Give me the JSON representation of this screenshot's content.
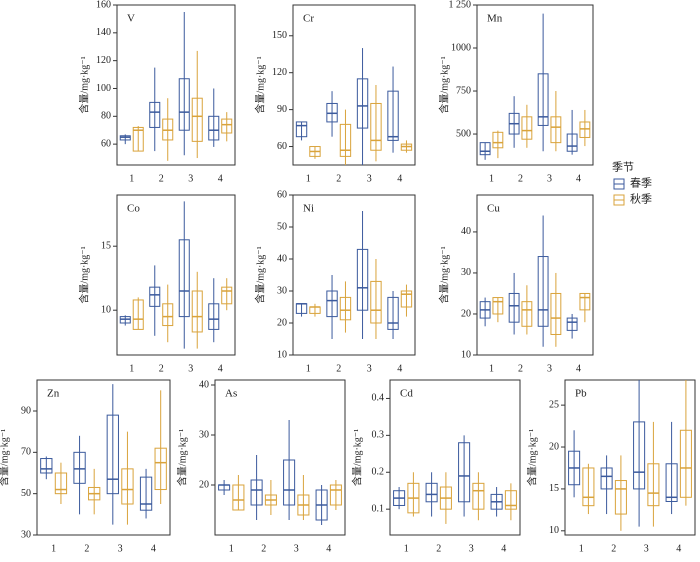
{
  "legend_title": "季节",
  "chart_data": [
    {
      "type": "box",
      "label": "V",
      "ylabel": "含量/mg·kg⁻¹",
      "categories": [
        "1",
        "2",
        "3",
        "4"
      ],
      "ylim": [
        45,
        160
      ],
      "yticks": [
        60,
        80,
        100,
        120,
        140,
        160
      ],
      "series": [
        {
          "name": "春季",
          "color": "#3b5a9d",
          "boxes": [
            [
              60,
              63,
              65,
              66,
              67
            ],
            [
              55,
              72,
              83,
              90,
              115
            ],
            [
              52,
              70,
              83,
              107,
              155
            ],
            [
              58,
              63,
              70,
              80,
              100
            ]
          ]
        },
        {
          "name": "秋季",
          "color": "#d9a33b",
          "boxes": [
            [
              55,
              55,
              70,
              72,
              73
            ],
            [
              48,
              63,
              70,
              78,
              93
            ],
            [
              50,
              62,
              80,
              93,
              127
            ],
            [
              62,
              68,
              74,
              78,
              83
            ]
          ]
        }
      ]
    },
    {
      "type": "box",
      "label": "Cr",
      "ylabel": "含量/mg·kg⁻¹",
      "categories": [
        "1",
        "2",
        "3",
        "4"
      ],
      "ylim": [
        45,
        175
      ],
      "yticks": [
        60,
        90,
        120,
        150
      ],
      "series": [
        {
          "name": "春季",
          "color": "#3b5a9d",
          "boxes": [
            [
              65,
              68,
              77,
              80,
              80
            ],
            [
              68,
              80,
              87,
              95,
              105
            ],
            [
              45,
              75,
              93,
              115,
              140
            ],
            [
              55,
              65,
              68,
              105,
              125
            ]
          ]
        },
        {
          "name": "秋季",
          "color": "#d9a33b",
          "boxes": [
            [
              50,
              52,
              56,
              60,
              60
            ],
            [
              45,
              52,
              57,
              78,
              90
            ],
            [
              48,
              57,
              65,
              95,
              110
            ],
            [
              55,
              57,
              60,
              62,
              65
            ]
          ]
        }
      ]
    },
    {
      "type": "box",
      "label": "Mn",
      "ylabel": "含量/mg·kg⁻¹",
      "categories": [
        "1",
        "2",
        "3",
        "4"
      ],
      "ylim": [
        320,
        1250
      ],
      "yticks": [
        500,
        750,
        1000,
        {
          "value": 1250,
          "label": "1 250"
        }
      ],
      "series": [
        {
          "name": "春季",
          "color": "#3b5a9d",
          "boxes": [
            [
              350,
              380,
              400,
              450,
              450
            ],
            [
              420,
              500,
              560,
              620,
              720
            ],
            [
              400,
              550,
              600,
              850,
              1200
            ],
            [
              380,
              400,
              430,
              500,
              640
            ]
          ]
        },
        {
          "name": "秋季",
          "color": "#d9a33b",
          "boxes": [
            [
              360,
              420,
              450,
              510,
              520
            ],
            [
              420,
              470,
              520,
              600,
              670
            ],
            [
              400,
              450,
              540,
              600,
              750
            ],
            [
              430,
              480,
              530,
              570,
              640
            ]
          ]
        }
      ]
    },
    {
      "type": "box",
      "label": "Co",
      "ylabel": "含量/mg·kg⁻¹",
      "categories": [
        "1",
        "2",
        "3",
        "4"
      ],
      "ylim": [
        6.5,
        19
      ],
      "yticks": [
        10,
        15
      ],
      "series": [
        {
          "name": "春季",
          "color": "#3b5a9d",
          "boxes": [
            [
              8.8,
              9,
              9.3,
              9.5,
              9.6
            ],
            [
              8,
              10.3,
              11.2,
              11.8,
              13.5
            ],
            [
              7,
              9.5,
              11.5,
              15.5,
              18.5
            ],
            [
              7.5,
              8.5,
              9.3,
              10.5,
              12.5
            ]
          ]
        },
        {
          "name": "秋季",
          "color": "#d9a33b",
          "boxes": [
            [
              8.5,
              8.5,
              9.3,
              10.8,
              11
            ],
            [
              7.5,
              8.8,
              9.5,
              10.5,
              12
            ],
            [
              7,
              8.3,
              9.5,
              11.5,
              13
            ],
            [
              10,
              10.5,
              11.5,
              11.8,
              12.5
            ]
          ]
        }
      ]
    },
    {
      "type": "box",
      "label": "Ni",
      "ylabel": "含量/mg·kg⁻¹",
      "categories": [
        "1",
        "2",
        "3",
        "4"
      ],
      "ylim": [
        10,
        60
      ],
      "yticks": [
        10,
        20,
        30,
        40,
        50,
        60
      ],
      "series": [
        {
          "name": "春季",
          "color": "#3b5a9d",
          "boxes": [
            [
              22,
              23,
              26,
              26,
              26
            ],
            [
              15,
              22,
              27,
              30,
              35
            ],
            [
              15,
              24,
              31,
              43,
              55
            ],
            [
              15,
              18,
              20,
              28,
              30
            ]
          ]
        },
        {
          "name": "秋季",
          "color": "#d9a33b",
          "boxes": [
            [
              22,
              23,
              25,
              25,
              26
            ],
            [
              17,
              21,
              24,
              28,
              33
            ],
            [
              15,
              20,
              24,
              33,
              40
            ],
            [
              22,
              25,
              29,
              30,
              32
            ]
          ]
        }
      ]
    },
    {
      "type": "box",
      "label": "Cu",
      "ylabel": "含量/mg·kg⁻¹",
      "categories": [
        "1",
        "2",
        "3",
        "4"
      ],
      "ylim": [
        10,
        49
      ],
      "yticks": [
        10,
        20,
        30,
        40
      ],
      "series": [
        {
          "name": "春季",
          "color": "#3b5a9d",
          "boxes": [
            [
              17,
              19,
              21,
              23,
              24
            ],
            [
              15,
              18,
              22,
              25,
              30
            ],
            [
              12,
              17,
              21,
              34,
              44
            ],
            [
              14,
              16,
              18,
              19,
              20
            ]
          ]
        },
        {
          "name": "秋季",
          "color": "#d9a33b",
          "boxes": [
            [
              18,
              20,
              23,
              24,
              24
            ],
            [
              15,
              17,
              21,
              23,
              27
            ],
            [
              12,
              15,
              19,
              25,
              30
            ],
            [
              18,
              21,
              24,
              25,
              25
            ]
          ]
        }
      ]
    },
    {
      "type": "box",
      "label": "Zn",
      "ylabel": "含量/mg·kg⁻¹",
      "categories": [
        "1",
        "2",
        "3",
        "4"
      ],
      "ylim": [
        30,
        105
      ],
      "yticks": [
        30,
        50,
        70,
        90
      ],
      "series": [
        {
          "name": "春季",
          "color": "#3b5a9d",
          "boxes": [
            [
              57,
              60,
              62,
              67,
              68
            ],
            [
              40,
              55,
              62,
              70,
              78
            ],
            [
              35,
              50,
              57,
              88,
              103
            ],
            [
              38,
              42,
              45,
              58,
              62
            ]
          ]
        },
        {
          "name": "秋季",
          "color": "#d9a33b",
          "boxes": [
            [
              45,
              50,
              52,
              60,
              65
            ],
            [
              40,
              47,
              50,
              53,
              62
            ],
            [
              35,
              45,
              52,
              62,
              80
            ],
            [
              45,
              52,
              65,
              72,
              100
            ]
          ]
        }
      ]
    },
    {
      "type": "box",
      "label": "As",
      "ylabel": "含量/mg·kg⁻¹",
      "categories": [
        "1",
        "2",
        "3",
        "4"
      ],
      "ylim": [
        10,
        41
      ],
      "yticks": [
        20,
        30,
        40
      ],
      "series": [
        {
          "name": "春季",
          "color": "#3b5a9d",
          "boxes": [
            [
              18,
              19,
              20,
              20,
              21
            ],
            [
              13,
              16,
              19,
              21,
              26
            ],
            [
              13,
              16,
              19,
              25,
              33
            ],
            [
              12,
              13,
              16,
              19,
              20
            ]
          ]
        },
        {
          "name": "秋季",
          "color": "#d9a33b",
          "boxes": [
            [
              15,
              15,
              17,
              20,
              22
            ],
            [
              14,
              16,
              17,
              18,
              21
            ],
            [
              13,
              14,
              16,
              18,
              22
            ],
            [
              15,
              16,
              19,
              20,
              21
            ]
          ]
        }
      ]
    },
    {
      "type": "box",
      "label": "Cd",
      "ylabel": "含量/mg·kg⁻¹",
      "categories": [
        "1",
        "2",
        "3",
        "4"
      ],
      "ylim": [
        0.03,
        0.45
      ],
      "yticks": [
        0.1,
        0.2,
        0.3,
        0.4
      ],
      "series": [
        {
          "name": "春季",
          "color": "#3b5a9d",
          "boxes": [
            [
              0.1,
              0.11,
              0.13,
              0.15,
              0.16
            ],
            [
              0.08,
              0.12,
              0.14,
              0.17,
              0.2
            ],
            [
              0.08,
              0.12,
              0.19,
              0.28,
              0.3
            ],
            [
              0.08,
              0.1,
              0.12,
              0.14,
              0.16
            ]
          ]
        },
        {
          "name": "秋季",
          "color": "#d9a33b",
          "boxes": [
            [
              0.08,
              0.09,
              0.13,
              0.17,
              0.2
            ],
            [
              0.06,
              0.1,
              0.13,
              0.16,
              0.2
            ],
            [
              0.07,
              0.1,
              0.15,
              0.17,
              0.2
            ],
            [
              0.07,
              0.1,
              0.11,
              0.15,
              0.17
            ]
          ]
        }
      ]
    },
    {
      "type": "box",
      "label": "Pb",
      "ylabel": "含量/mg·kg⁻¹",
      "categories": [
        "1",
        "2",
        "3",
        "4"
      ],
      "ylim": [
        9.5,
        28
      ],
      "yticks": [
        10,
        15,
        20,
        25
      ],
      "series": [
        {
          "name": "春季",
          "color": "#3b5a9d",
          "boxes": [
            [
              14,
              15.5,
              17.5,
              19.5,
              22
            ],
            [
              12,
              15,
              16.5,
              17.5,
              19
            ],
            [
              10.5,
              15,
              17,
              23,
              28
            ],
            [
              12,
              13.5,
              14,
              18,
              23
            ]
          ]
        },
        {
          "name": "秋季",
          "color": "#d9a33b",
          "boxes": [
            [
              12,
              13,
              14,
              17.5,
              18
            ],
            [
              10,
              12,
              15,
              16,
              19
            ],
            [
              10.5,
              13,
              14.5,
              18,
              23
            ],
            [
              13,
              14,
              17.5,
              22,
              28
            ]
          ]
        }
      ]
    }
  ]
}
